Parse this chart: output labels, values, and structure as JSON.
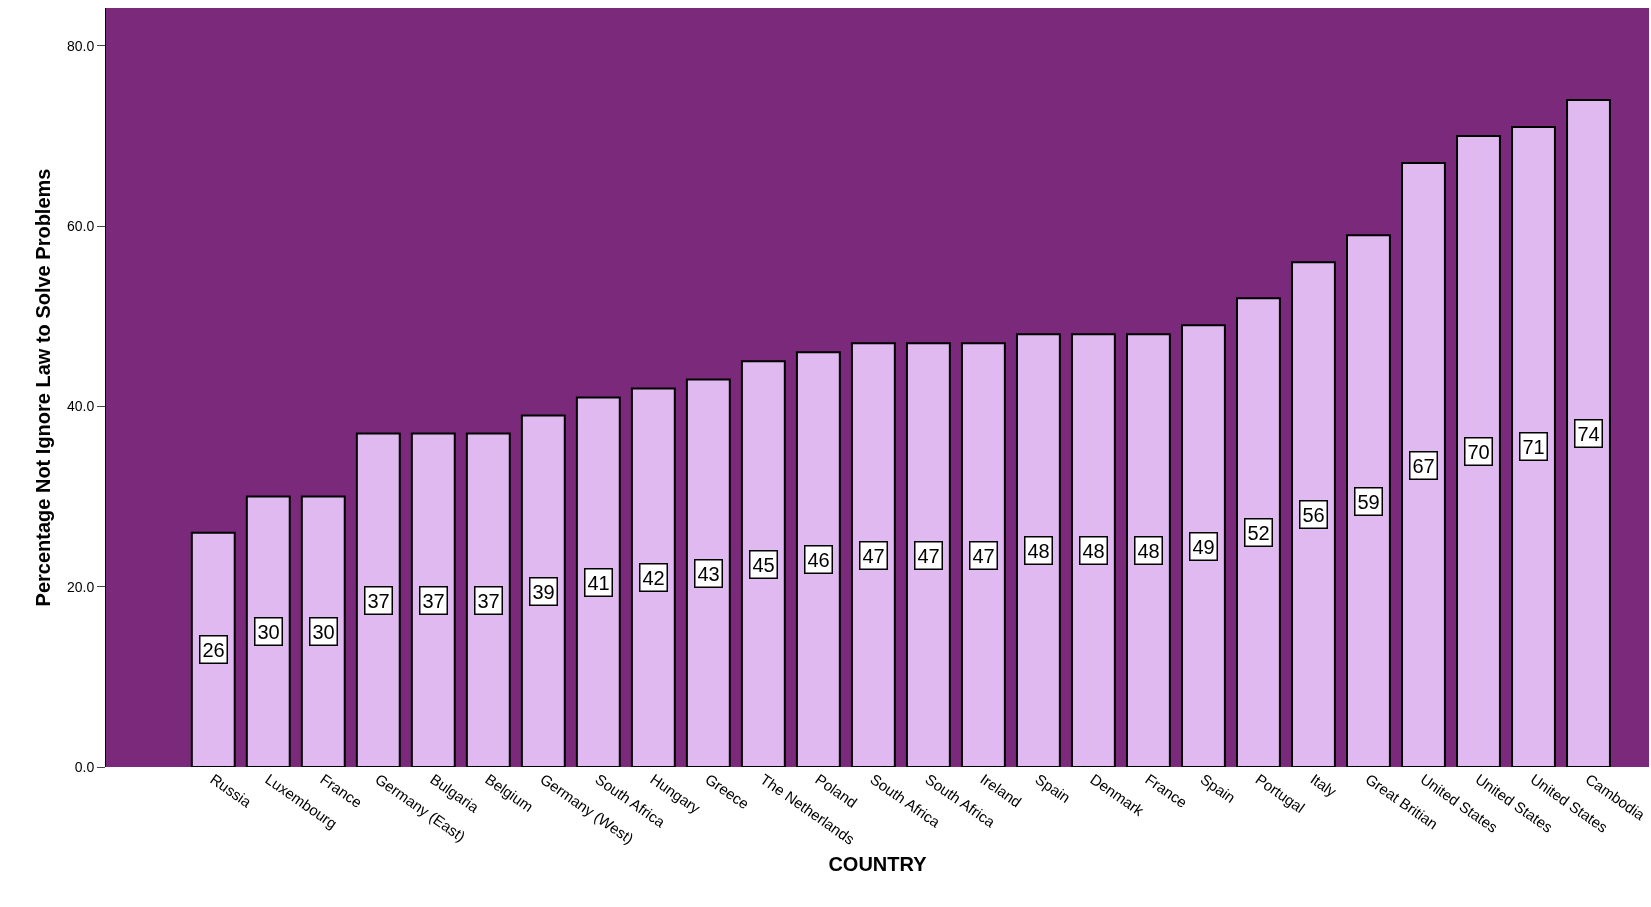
{
  "chart_data": {
    "type": "bar",
    "xlabel": "COUNTRY",
    "ylabel": "Percentage Not Ignore Law to Solve Problems",
    "categories": [
      "Russia",
      "Luxembourg",
      "France",
      "Germany (East)",
      "Bulgaria",
      "Belgium",
      "Germany (West)",
      "South Africa",
      "Hungary",
      "Greece",
      "The Netherlands",
      "Poland",
      "South Africa",
      "South Africa",
      "Ireland",
      "Spain",
      "Denmark",
      "France",
      "Spain",
      "Portugal",
      "Italy",
      "Great Britian",
      "United States",
      "United States",
      "United States",
      "Cambodia"
    ],
    "values": [
      26,
      30,
      30,
      37,
      37,
      37,
      39,
      41,
      42,
      43,
      45,
      46,
      47,
      47,
      47,
      48,
      48,
      48,
      49,
      52,
      56,
      59,
      67,
      70,
      71,
      74
    ],
    "color": "#dfb9ef",
    "ylim": [
      0,
      84.2
    ],
    "yticks": [
      {
        "value": 0,
        "label": "0.0"
      },
      {
        "value": 20,
        "label": "20.0"
      },
      {
        "value": 40,
        "label": "40.0"
      },
      {
        "value": 60,
        "label": "60.0"
      },
      {
        "value": 80,
        "label": "80.0"
      }
    ],
    "data_labels": true
  }
}
